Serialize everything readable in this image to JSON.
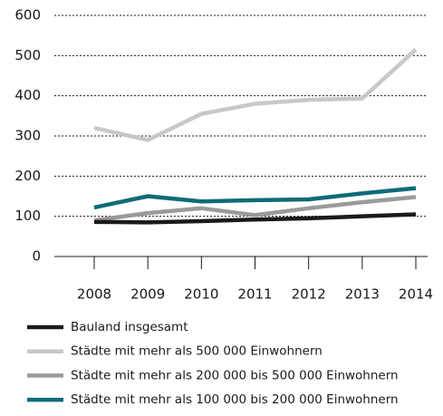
{
  "chart_data": {
    "type": "line",
    "categories": [
      "2008",
      "2009",
      "2010",
      "2011",
      "2012",
      "2013",
      "2014"
    ],
    "series": [
      {
        "name": "Bauland insgesamt",
        "color": "#1a1a1a",
        "values": [
          86,
          85,
          88,
          92,
          95,
          100,
          105
        ]
      },
      {
        "name": "Städte mit mehr als 500 000 Einwohnern",
        "color": "#c8c8c8",
        "values": [
          320,
          290,
          355,
          380,
          390,
          393,
          515
        ]
      },
      {
        "name": "Städte mit mehr als 200 000 bis 500 000 Einwohnern",
        "color": "#9a9a9a",
        "values": [
          90,
          108,
          120,
          103,
          120,
          135,
          148
        ]
      },
      {
        "name": "Städte mit mehr als 100 000 bis 200 000 Einwohnern",
        "color": "#0f6b78",
        "values": [
          122,
          150,
          137,
          140,
          142,
          157,
          170
        ]
      }
    ],
    "ylim": [
      0,
      600
    ],
    "yticks": [
      0,
      100,
      200,
      300,
      400,
      500,
      600
    ],
    "grid": true,
    "legend": "bottom"
  }
}
